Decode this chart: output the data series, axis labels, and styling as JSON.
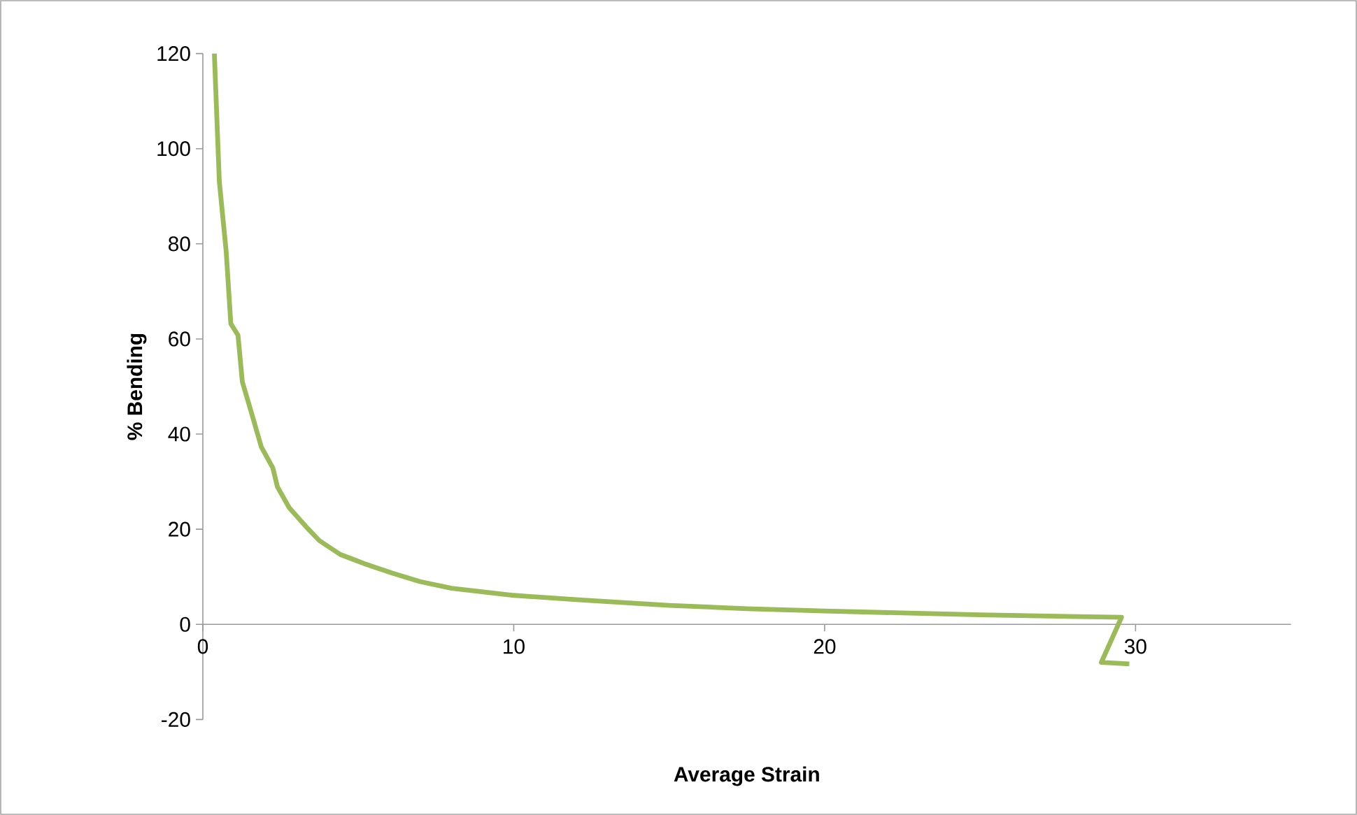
{
  "chart_data": {
    "type": "line",
    "xlabel": "Average Strain",
    "ylabel": "% Bending",
    "series": [
      {
        "color": "#9bbb59",
        "x": [
          0.37,
          0.53,
          0.75,
          0.9,
          1.13,
          1.27,
          1.58,
          1.88,
          2.25,
          2.4,
          2.78,
          3.38,
          3.75,
          4.42,
          5.18,
          6.08,
          6.98,
          8,
          10,
          12,
          15,
          17.5,
          20,
          22.5,
          25,
          27.5,
          29.55,
          28.9,
          29.8
        ],
        "values": [
          120,
          93.1,
          78.4,
          63.2,
          60.8,
          51,
          44.1,
          37.3,
          32.9,
          28.9,
          24.5,
          20.1,
          17.6,
          14.7,
          12.8,
          10.8,
          9.0,
          7.6,
          6.1,
          5.2,
          4.0,
          3.3,
          2.8,
          2.4,
          2.0,
          1.7,
          1.5,
          -8.0,
          -8.3
        ]
      }
    ],
    "xlim": [
      0,
      35
    ],
    "ylim": [
      -20,
      120
    ],
    "xticks": [
      0,
      10,
      20,
      30
    ],
    "yticks": [
      -20,
      0,
      20,
      40,
      60,
      80,
      100,
      120
    ],
    "marker": "none",
    "line_style": "solid"
  }
}
